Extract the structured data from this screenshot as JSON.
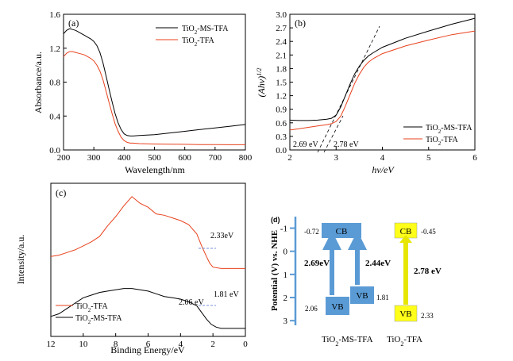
{
  "chart_data": [
    {
      "type": "line",
      "panel_label": "(a)",
      "xlabel": "Wavelength/nm",
      "ylabel": "Absorbance/a.u.",
      "xlim": [
        200,
        800
      ],
      "ylim": [
        0,
        1.6
      ],
      "xticks": [
        "200",
        "300",
        "400",
        "500",
        "600",
        "700",
        "800"
      ],
      "yticks": [
        "0.0",
        "0.4",
        "0.8",
        "1.2",
        "1.6"
      ],
      "legend_position": "top-right",
      "series": [
        {
          "name": "TiO2-MS-TFA",
          "name_main": "TiO",
          "name_sub": "2",
          "name_rest": "-MS-TFA",
          "color": "#000000",
          "x": [
            200,
            210,
            220,
            230,
            240,
            250,
            260,
            270,
            280,
            290,
            300,
            310,
            320,
            330,
            340,
            350,
            360,
            370,
            380,
            390,
            400,
            410,
            420,
            430,
            450,
            500,
            550,
            600,
            650,
            700,
            750,
            800
          ],
          "y": [
            1.37,
            1.41,
            1.43,
            1.42,
            1.41,
            1.39,
            1.37,
            1.35,
            1.33,
            1.31,
            1.28,
            1.23,
            1.15,
            1.03,
            0.88,
            0.72,
            0.57,
            0.43,
            0.32,
            0.24,
            0.19,
            0.17,
            0.165,
            0.165,
            0.17,
            0.18,
            0.2,
            0.22,
            0.24,
            0.26,
            0.28,
            0.3
          ]
        },
        {
          "name": "TiO2-TFA",
          "name_main": "TiO",
          "name_sub": "2",
          "name_rest": "-TFA",
          "color": "#e8421e",
          "x": [
            200,
            210,
            220,
            230,
            240,
            250,
            260,
            270,
            280,
            290,
            300,
            310,
            320,
            330,
            340,
            350,
            360,
            370,
            380,
            390,
            400,
            410,
            420,
            430,
            450,
            500,
            550,
            600,
            650,
            700,
            750,
            800
          ],
          "y": [
            1.1,
            1.14,
            1.16,
            1.16,
            1.15,
            1.14,
            1.13,
            1.12,
            1.1,
            1.08,
            1.05,
            1.0,
            0.93,
            0.83,
            0.7,
            0.56,
            0.43,
            0.31,
            0.22,
            0.15,
            0.11,
            0.09,
            0.08,
            0.08,
            0.075,
            0.07,
            0.068,
            0.066,
            0.064,
            0.063,
            0.062,
            0.062
          ]
        }
      ]
    },
    {
      "type": "line",
      "panel_label": "(b)",
      "xlabel": "hν/eV",
      "ylabel": "(Ahν)",
      "ylabel_sup": "1/2",
      "xlim": [
        2,
        6
      ],
      "ylim": [
        0,
        3.0
      ],
      "xticks": [
        "2",
        "3",
        "4",
        "5",
        "6"
      ],
      "yticks": [
        "0.0",
        "0.3",
        "0.6",
        "0.9",
        "1.2",
        "1.5",
        "1.8",
        "2.1",
        "2.4",
        "2.7",
        "3.0"
      ],
      "legend_position": "bottom-right",
      "annotations": [
        "2.69 eV",
        "2.78 eV"
      ],
      "series": [
        {
          "name": "TiO2-MS-TFA",
          "name_main": "TiO",
          "name_sub": "2",
          "name_rest": "-MS-TFA",
          "color": "#000000",
          "x": [
            2.0,
            2.2,
            2.4,
            2.6,
            2.8,
            2.9,
            3.0,
            3.1,
            3.2,
            3.3,
            3.4,
            3.5,
            3.6,
            3.7,
            3.8,
            4.0,
            4.5,
            5.0,
            5.5,
            6.0
          ],
          "y": [
            0.66,
            0.65,
            0.65,
            0.66,
            0.68,
            0.7,
            0.77,
            0.95,
            1.2,
            1.45,
            1.68,
            1.85,
            1.98,
            2.08,
            2.15,
            2.27,
            2.47,
            2.63,
            2.78,
            2.91
          ]
        },
        {
          "name": "TiO2-TFA",
          "name_main": "TiO",
          "name_sub": "2",
          "name_rest": "-TFA",
          "color": "#e8421e",
          "x": [
            2.0,
            2.2,
            2.4,
            2.6,
            2.8,
            2.9,
            3.0,
            3.1,
            3.2,
            3.3,
            3.4,
            3.5,
            3.6,
            3.7,
            3.8,
            4.0,
            4.5,
            5.0,
            5.5,
            6.0
          ],
          "y": [
            0.44,
            0.47,
            0.5,
            0.53,
            0.56,
            0.58,
            0.63,
            0.75,
            0.97,
            1.22,
            1.47,
            1.67,
            1.83,
            1.94,
            2.02,
            2.13,
            2.3,
            2.43,
            2.55,
            2.63
          ]
        }
      ]
    },
    {
      "type": "line",
      "panel_label": "(c)",
      "xlabel": "Binding Energy/eV",
      "ylabel": "Intensity/a.u.",
      "xlim": [
        12,
        0
      ],
      "xticks": [
        "12",
        "10",
        "8",
        "6",
        "4",
        "2",
        "0"
      ],
      "legend_position": "bottom-left",
      "annotations": [
        "2.33eV",
        "1.81 eV",
        "2.06 eV"
      ],
      "series": [
        {
          "name": "TiO2-TFA",
          "name_main": "TiO",
          "name_sub": "2",
          "name_rest": "-TFA",
          "color": "#e8421e",
          "x": [
            12,
            11.5,
            11,
            10.5,
            10,
            9.5,
            9,
            8.5,
            8,
            7.5,
            7,
            6.5,
            6,
            5.5,
            5,
            4.5,
            4,
            3.5,
            3,
            2.7,
            2.4,
            2.2,
            2,
            1.5,
            1,
            0.5,
            0
          ],
          "y": [
            0.55,
            0.56,
            0.58,
            0.6,
            0.63,
            0.66,
            0.7,
            0.78,
            0.85,
            0.93,
            1.0,
            0.95,
            0.92,
            0.87,
            0.86,
            0.84,
            0.82,
            0.79,
            0.72,
            0.63,
            0.55,
            0.5,
            0.47,
            0.46,
            0.46,
            0.46,
            0.46
          ]
        },
        {
          "name": "TiO2-MS-TFA",
          "name_main": "TiO",
          "name_sub": "2",
          "name_rest": "-MS-TFA",
          "color": "#000000",
          "x": [
            12,
            11.5,
            11,
            10.5,
            10,
            9.5,
            9,
            8.5,
            8,
            7.5,
            7,
            6.5,
            6,
            5.5,
            5,
            4.5,
            4,
            3.5,
            3,
            2.7,
            2.4,
            2.1,
            1.8,
            1.5,
            1,
            0.5,
            0
          ],
          "y": [
            0.1,
            0.12,
            0.16,
            0.2,
            0.24,
            0.26,
            0.28,
            0.29,
            0.3,
            0.31,
            0.31,
            0.3,
            0.29,
            0.27,
            0.25,
            0.24,
            0.23,
            0.21,
            0.18,
            0.13,
            0.08,
            0.04,
            0.02,
            0.01,
            0.01,
            0.01,
            0.01
          ]
        }
      ]
    },
    {
      "type": "diagram",
      "panel_label": "(d)",
      "ylabel": "Potential (V) vs. NHE",
      "yticks": [
        "-1",
        "0",
        "1",
        "2",
        "3"
      ],
      "ylim": [
        -1.5,
        3.2
      ],
      "colors": {
        "blue_box": "#5b9bd5",
        "yellow_box": "#ffff1a"
      },
      "bands": [
        {
          "label": "CB",
          "potential": -0.72,
          "value_label": "-0.72",
          "material": "TiO2-MS-TFA"
        },
        {
          "label": "VB",
          "potential": 2.06,
          "value_label": "2.06",
          "material": "TiO2-MS-TFA"
        },
        {
          "label": "VB",
          "potential": 1.81,
          "value_label": "1.81",
          "material": "TiO2-MS-TFA"
        },
        {
          "label": "CB",
          "potential": -0.45,
          "value_label": "-0.45",
          "material": "TiO2-TFA"
        },
        {
          "label": "VB",
          "potential": 2.33,
          "value_label": "2.33",
          "material": "TiO2-TFA"
        }
      ],
      "gaps": [
        "2.69eV",
        "2.44eV",
        "2.78 eV"
      ],
      "materials": [
        {
          "main": "TiO",
          "sub": "2",
          "rest": "-MS-TFA"
        },
        {
          "main": "TiO",
          "sub": "2",
          "rest": "-TFA"
        }
      ]
    }
  ]
}
